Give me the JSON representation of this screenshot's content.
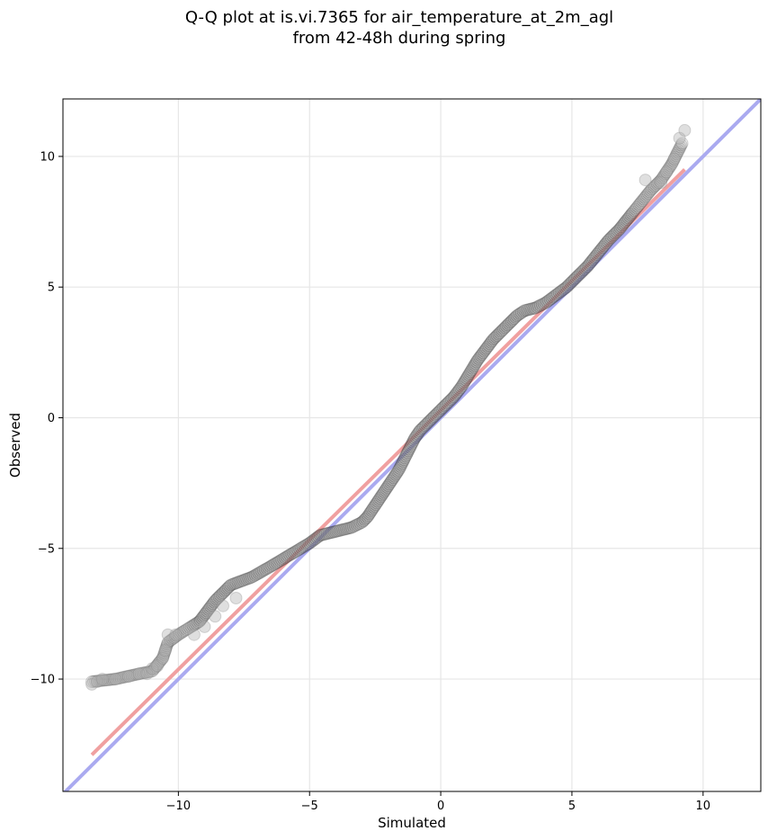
{
  "chart_data": {
    "type": "scatter",
    "title_line1": "Q-Q plot at is.vi.7365 for air_temperature_at_2m_agl",
    "title_line2": "from 42-48h during spring",
    "xlabel": "Simulated",
    "ylabel": "Observed",
    "xlim": [
      -14.4,
      12.2
    ],
    "ylim": [
      -14.3,
      12.2
    ],
    "xticks": [
      -10,
      -5,
      0,
      5,
      10
    ],
    "yticks": [
      -10,
      -5,
      0,
      5,
      10
    ],
    "xtick_labels": [
      "−10",
      "−5",
      "0",
      "5",
      "10"
    ],
    "ytick_labels": [
      "−10",
      "−5",
      "0",
      "5",
      "10"
    ],
    "grid": true,
    "colors": {
      "points": "#2b2b2b",
      "identity_line": "#aaaaf0",
      "fit_line": "#f0a0a0",
      "point_fill": "#8a8a8a"
    },
    "identity_line": {
      "x": [
        -14.4,
        12.2
      ],
      "y": [
        -14.4,
        12.2
      ]
    },
    "fit_line": {
      "x": [
        -13.3,
        9.3
      ],
      "y": [
        -12.9,
        9.5
      ]
    },
    "quantile_curve": {
      "x": [
        -13.3,
        -12.4,
        -11.5,
        -11.0,
        -10.6,
        -10.4,
        -10.0,
        -9.2,
        -8.6,
        -8.0,
        -7.2,
        -6.5,
        -6.0,
        -5.5,
        -5.0,
        -4.6,
        -4.2,
        -3.8,
        -3.4,
        -3.0,
        -2.8,
        -2.6,
        -2.4,
        -2.2,
        -2.0,
        -1.8,
        -1.6,
        -1.4,
        -1.2,
        -1.0,
        -0.8,
        -0.6,
        -0.4,
        -0.2,
        0.0,
        0.2,
        0.5,
        0.8,
        1.1,
        1.4,
        1.7,
        2.0,
        2.3,
        2.6,
        2.9,
        3.2,
        3.6,
        4.0,
        4.4,
        4.8,
        5.2,
        5.6,
        6.0,
        6.4,
        6.8,
        7.2,
        7.6,
        8.0,
        8.4,
        8.8,
        9.2
      ],
      "y": [
        -10.1,
        -10.0,
        -9.8,
        -9.7,
        -9.2,
        -8.6,
        -8.3,
        -7.8,
        -7.0,
        -6.4,
        -6.1,
        -5.7,
        -5.4,
        -5.1,
        -4.8,
        -4.5,
        -4.4,
        -4.3,
        -4.2,
        -4.0,
        -3.8,
        -3.5,
        -3.2,
        -2.9,
        -2.6,
        -2.3,
        -2.0,
        -1.6,
        -1.2,
        -0.8,
        -0.5,
        -0.3,
        -0.1,
        0.1,
        0.3,
        0.5,
        0.8,
        1.2,
        1.7,
        2.2,
        2.6,
        3.0,
        3.3,
        3.6,
        3.9,
        4.1,
        4.2,
        4.4,
        4.7,
        5.0,
        5.4,
        5.8,
        6.3,
        6.8,
        7.2,
        7.7,
        8.2,
        8.7,
        9.1,
        9.7,
        10.5
      ]
    },
    "outlier_points": {
      "x": [
        -13.3,
        -13.1,
        -12.9,
        -12.4,
        -11.9,
        -11.5,
        -11.2,
        -11.0,
        -10.8,
        -10.6,
        -10.5,
        -10.4,
        -10.1,
        -9.4,
        -9.0,
        -8.6,
        -8.3,
        -7.8,
        7.8,
        8.4,
        8.6,
        8.9,
        9.1,
        9.3
      ],
      "y": [
        -10.2,
        -10.1,
        -10.0,
        -10.0,
        -9.9,
        -9.8,
        -9.8,
        -9.6,
        -9.5,
        -9.2,
        -8.9,
        -8.3,
        -8.3,
        -8.3,
        -8.0,
        -7.6,
        -7.2,
        -6.9,
        9.1,
        9.0,
        9.4,
        9.9,
        10.7,
        11.0
      ]
    }
  }
}
